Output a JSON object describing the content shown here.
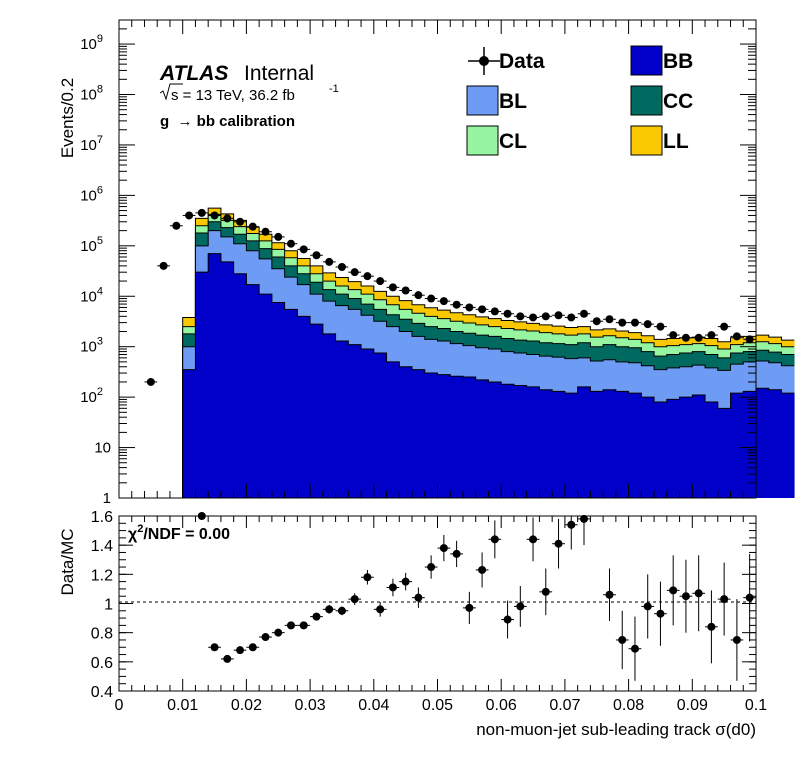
{
  "chart_data": [
    {
      "type": "area",
      "panel": "main",
      "ylabel": "Events/0.2",
      "yscale": "log",
      "ylim": [
        1,
        3000000000
      ],
      "xlim": [
        0,
        0.1
      ],
      "y_ticks": [
        {
          "value": 1,
          "base": "1",
          "exp": ""
        },
        {
          "value": 10,
          "base": "10",
          "exp": ""
        },
        {
          "value": 100,
          "base": "10",
          "exp": "2"
        },
        {
          "value": 1000,
          "base": "10",
          "exp": "3"
        },
        {
          "value": 10000,
          "base": "10",
          "exp": "4"
        },
        {
          "value": 100000,
          "base": "10",
          "exp": "5"
        },
        {
          "value": 1000000,
          "base": "10",
          "exp": "6"
        },
        {
          "value": 10000000,
          "base": "10",
          "exp": "7"
        },
        {
          "value": 100000000,
          "base": "10",
          "exp": "8"
        },
        {
          "value": 1000000000,
          "base": "10",
          "exp": "9"
        }
      ],
      "annotations": {
        "atlas": "ATLAS",
        "internal": "Internal",
        "sqrt_s": "s = 13 TeV, 36.2 fb",
        "lumi_exp": "-1",
        "calibration": "g  → bb calibration"
      },
      "legend": {
        "placement": "top-right",
        "entries": [
          {
            "label": "Data",
            "kind": "marker",
            "color": "#000000"
          },
          {
            "label": "BB",
            "kind": "fill",
            "color": "#0000c8"
          },
          {
            "label": "BL",
            "kind": "fill",
            "color": "#6e9cf5"
          },
          {
            "label": "CC",
            "kind": "fill",
            "color": "#006a60"
          },
          {
            "label": "CL",
            "kind": "fill",
            "color": "#96f5a0"
          },
          {
            "label": "LL",
            "kind": "fill",
            "color": "#fac800"
          }
        ]
      },
      "bin_edges_start": 0.01,
      "bin_width": 0.002,
      "stack_order_bottom_to_top": [
        "BB",
        "BL",
        "CC",
        "CL",
        "LL"
      ],
      "stack_cumulative": {
        "BB": [
          350,
          30000,
          70000,
          48000,
          28000,
          17000,
          11000,
          7500,
          5500,
          4000,
          2800,
          1800,
          1300,
          1100,
          900,
          750,
          500,
          400,
          350,
          300,
          280,
          260,
          250,
          220,
          200,
          180,
          170,
          160,
          140,
          130,
          120,
          160,
          130,
          140,
          130,
          120,
          100,
          80,
          90,
          100,
          110,
          80,
          60,
          120,
          130,
          150,
          140,
          120
        ],
        "BL": [
          1000,
          100000,
          200000,
          150000,
          110000,
          80000,
          55000,
          35000,
          24000,
          17000,
          11000,
          8000,
          6500,
          5500,
          4200,
          3200,
          2500,
          2000,
          1600,
          1400,
          1300,
          1150,
          1050,
          950,
          900,
          800,
          750,
          700,
          650,
          620,
          580,
          600,
          520,
          550,
          500,
          480,
          420,
          350,
          380,
          400,
          430,
          380,
          340,
          450,
          500,
          520,
          480,
          420
        ],
        "CC": [
          1800,
          180000,
          300000,
          230000,
          170000,
          125000,
          88000,
          60000,
          40000,
          28000,
          19000,
          13500,
          11000,
          9000,
          7000,
          5500,
          4300,
          3500,
          2900,
          2500,
          2300,
          2000,
          1850,
          1700,
          1600,
          1450,
          1350,
          1300,
          1200,
          1150,
          1100,
          1200,
          1000,
          1100,
          1000,
          950,
          800,
          650,
          700,
          750,
          800,
          700,
          600,
          750,
          800,
          850,
          780,
          700
        ],
        "CL": [
          2500,
          250000,
          420000,
          320000,
          240000,
          175000,
          125000,
          85000,
          58000,
          40000,
          28000,
          20000,
          16000,
          13500,
          11000,
          8500,
          6800,
          5500,
          4600,
          4000,
          3600,
          3200,
          2950,
          2700,
          2500,
          2300,
          2150,
          2050,
          1900,
          1800,
          1700,
          1800,
          1550,
          1650,
          1500,
          1400,
          1200,
          1000,
          1050,
          1100,
          1150,
          1050,
          900,
          1100,
          1200,
          1250,
          1150,
          1000
        ],
        "LL": [
          3800,
          350000,
          560000,
          430000,
          320000,
          235000,
          170000,
          115000,
          80000,
          56000,
          40000,
          29000,
          23500,
          19500,
          16000,
          12500,
          10000,
          8200,
          6800,
          5900,
          5300,
          4700,
          4300,
          3900,
          3600,
          3300,
          3100,
          2900,
          2700,
          2550,
          2400,
          2500,
          2150,
          2250,
          2050,
          1900,
          1650,
          1400,
          1450,
          1500,
          1550,
          1450,
          1250,
          1500,
          1600,
          1700,
          1550,
          1350
        ]
      },
      "data_points": {
        "x": [
          0.005,
          0.007,
          0.009,
          0.011,
          0.013,
          0.015,
          0.017,
          0.019,
          0.021,
          0.023,
          0.025,
          0.027,
          0.029,
          0.031,
          0.033,
          0.035,
          0.037,
          0.039,
          0.041,
          0.043,
          0.045,
          0.047,
          0.049,
          0.051,
          0.053,
          0.055,
          0.057,
          0.059,
          0.061,
          0.063,
          0.065,
          0.067,
          0.069,
          0.071,
          0.073,
          0.075,
          0.077,
          0.079,
          0.081,
          0.083,
          0.085,
          0.087,
          0.089,
          0.091,
          0.093,
          0.095,
          0.097,
          0.099
        ],
        "y": [
          200,
          40000,
          250000,
          400000,
          450000,
          400000,
          350000,
          300000,
          240000,
          190000,
          150000,
          110000,
          85000,
          65000,
          48000,
          38000,
          30000,
          25000,
          20000,
          15000,
          13000,
          10500,
          9000,
          8000,
          6800,
          6000,
          5500,
          5000,
          4500,
          4000,
          3800,
          4000,
          4200,
          3800,
          4500,
          3200,
          3500,
          3000,
          3000,
          2800,
          2500,
          1700,
          1500,
          1500,
          1700,
          2500,
          1600,
          1400
        ]
      }
    },
    {
      "type": "scatter",
      "panel": "ratio",
      "ylabel": "Data/MC",
      "xlabel": "non-muon-jet sub-leading track σ(d0)",
      "xlim": [
        0,
        0.1
      ],
      "ylim": [
        0.4,
        1.6
      ],
      "reference_line": 1,
      "x_ticks": [
        "0",
        "0.01",
        "0.02",
        "0.03",
        "0.04",
        "0.05",
        "0.06",
        "0.07",
        "0.08",
        "0.09",
        "0.1"
      ],
      "y_ticks": [
        "0.4",
        "0.6",
        "0.8",
        "1",
        "1.2",
        "1.4",
        "1.6"
      ],
      "chi2_label": "χ",
      "chi2_exp": "2",
      "chi2_text": "/NDF = 0.00",
      "points": {
        "x": [
          0.013,
          0.015,
          0.017,
          0.019,
          0.021,
          0.023,
          0.025,
          0.027,
          0.029,
          0.031,
          0.033,
          0.035,
          0.037,
          0.039,
          0.041,
          0.043,
          0.045,
          0.047,
          0.049,
          0.051,
          0.053,
          0.055,
          0.057,
          0.059,
          0.061,
          0.063,
          0.065,
          0.067,
          0.069,
          0.071,
          0.073,
          0.077,
          0.079,
          0.081,
          0.083,
          0.085,
          0.087,
          0.089,
          0.091,
          0.093,
          0.095,
          0.097,
          0.099
        ],
        "y": [
          1.62,
          0.7,
          0.62,
          0.68,
          0.7,
          0.77,
          0.8,
          0.85,
          0.85,
          0.91,
          0.96,
          0.95,
          1.03,
          1.18,
          0.96,
          1.11,
          1.15,
          1.04,
          1.25,
          1.38,
          1.34,
          0.97,
          1.23,
          1.44,
          0.89,
          0.98,
          1.44,
          1.08,
          1.41,
          1.54,
          1.58,
          1.06,
          0.75,
          0.69,
          0.98,
          0.93,
          1.09,
          1.05,
          1.07,
          0.84,
          1.03,
          0.75,
          1.04
        ],
        "yerr": [
          0.02,
          0.02,
          0.02,
          0.02,
          0.02,
          0.02,
          0.02,
          0.02,
          0.02,
          0.02,
          0.03,
          0.03,
          0.04,
          0.05,
          0.05,
          0.06,
          0.06,
          0.07,
          0.08,
          0.09,
          0.09,
          0.11,
          0.12,
          0.13,
          0.13,
          0.14,
          0.15,
          0.16,
          0.17,
          0.17,
          0.18,
          0.18,
          0.2,
          0.22,
          0.22,
          0.22,
          0.24,
          0.25,
          0.26,
          0.25,
          0.25,
          0.28,
          0.3
        ]
      }
    }
  ]
}
